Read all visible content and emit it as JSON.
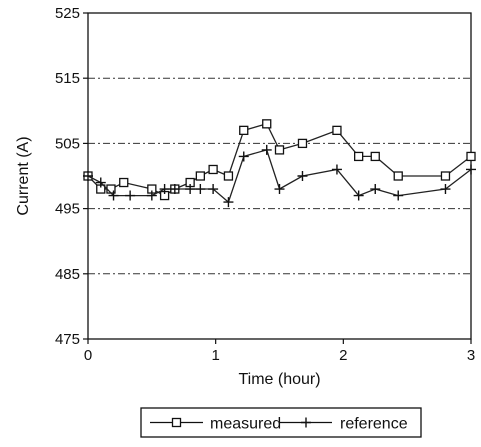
{
  "chart_data": {
    "type": "line",
    "title": "",
    "xlabel": "Time (hour)",
    "ylabel": "Current (A)",
    "xlim": [
      0,
      3
    ],
    "ylim": [
      475,
      525
    ],
    "x_ticks": [
      0,
      1,
      2,
      3
    ],
    "y_ticks": [
      475,
      485,
      495,
      505,
      515,
      525
    ],
    "grid": "horizontal dash-dot lines",
    "legend_position": "bottom-center",
    "series": [
      {
        "name": "measured",
        "marker": "square",
        "color": "#222222",
        "points": [
          [
            0.0,
            500
          ],
          [
            0.1,
            498
          ],
          [
            0.18,
            498
          ],
          [
            0.28,
            499
          ],
          [
            0.5,
            498
          ],
          [
            0.6,
            497
          ],
          [
            0.68,
            498
          ],
          [
            0.8,
            499
          ],
          [
            0.88,
            500
          ],
          [
            0.98,
            501
          ],
          [
            1.1,
            500
          ],
          [
            1.22,
            507
          ],
          [
            1.4,
            508
          ],
          [
            1.5,
            504
          ],
          [
            1.68,
            505
          ],
          [
            1.95,
            507
          ],
          [
            2.12,
            503
          ],
          [
            2.25,
            503
          ],
          [
            2.43,
            500
          ],
          [
            2.8,
            500
          ],
          [
            3.0,
            503
          ]
        ]
      },
      {
        "name": "reference",
        "marker": "plus",
        "color": "#222222",
        "points": [
          [
            0.0,
            500
          ],
          [
            0.1,
            499
          ],
          [
            0.2,
            497
          ],
          [
            0.33,
            497
          ],
          [
            0.5,
            497
          ],
          [
            0.6,
            498
          ],
          [
            0.68,
            498
          ],
          [
            0.8,
            498
          ],
          [
            0.88,
            498
          ],
          [
            0.98,
            498
          ],
          [
            1.1,
            496
          ],
          [
            1.22,
            503
          ],
          [
            1.4,
            504
          ],
          [
            1.5,
            498
          ],
          [
            1.68,
            500
          ],
          [
            1.95,
            501
          ],
          [
            2.12,
            497
          ],
          [
            2.25,
            498
          ],
          [
            2.43,
            497
          ],
          [
            2.8,
            498
          ],
          [
            3.0,
            501
          ]
        ]
      }
    ]
  }
}
